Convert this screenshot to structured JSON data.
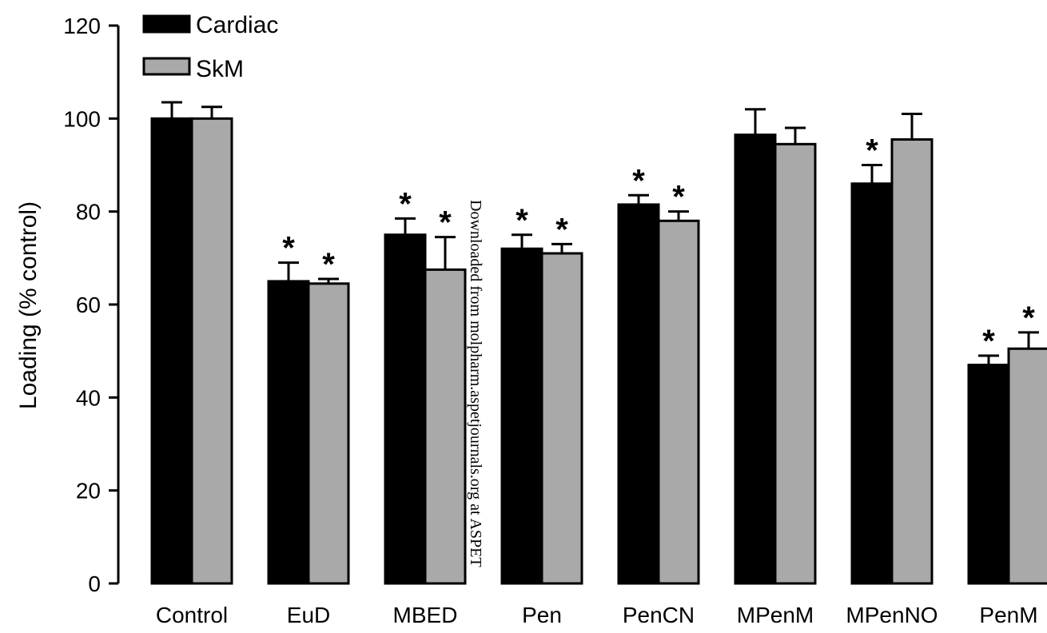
{
  "chart_data": {
    "type": "bar",
    "ylabel": "Loading (% control)",
    "ylim": [
      0,
      120
    ],
    "yticks": [
      0,
      20,
      40,
      60,
      80,
      100,
      120
    ],
    "categories": [
      "Control",
      "EuD",
      "MBED",
      "Pen",
      "PenCN",
      "MPenM",
      "MPenNO",
      "PenM"
    ],
    "series": [
      {
        "name": "Cardiac",
        "color": "#000000",
        "values": [
          100,
          65,
          75,
          72,
          81.5,
          96.5,
          86,
          47
        ],
        "errors": [
          3.5,
          4,
          3.5,
          3,
          2,
          5.5,
          4,
          2
        ],
        "significant": [
          false,
          true,
          true,
          true,
          true,
          false,
          true,
          true
        ]
      },
      {
        "name": "SkM",
        "color": "#a9a9a9",
        "values": [
          100,
          64.5,
          67.5,
          71,
          78,
          94.5,
          95.5,
          50.5
        ],
        "errors": [
          2.5,
          1,
          7,
          2,
          2,
          3.5,
          5.5,
          3.5
        ],
        "significant": [
          false,
          true,
          true,
          true,
          true,
          false,
          false,
          true
        ]
      }
    ],
    "significance_marker": "*",
    "legend_position": "top-left",
    "grid": false,
    "watermark": "Downloaded from molpharm.aspetjournals.org at ASPET"
  }
}
